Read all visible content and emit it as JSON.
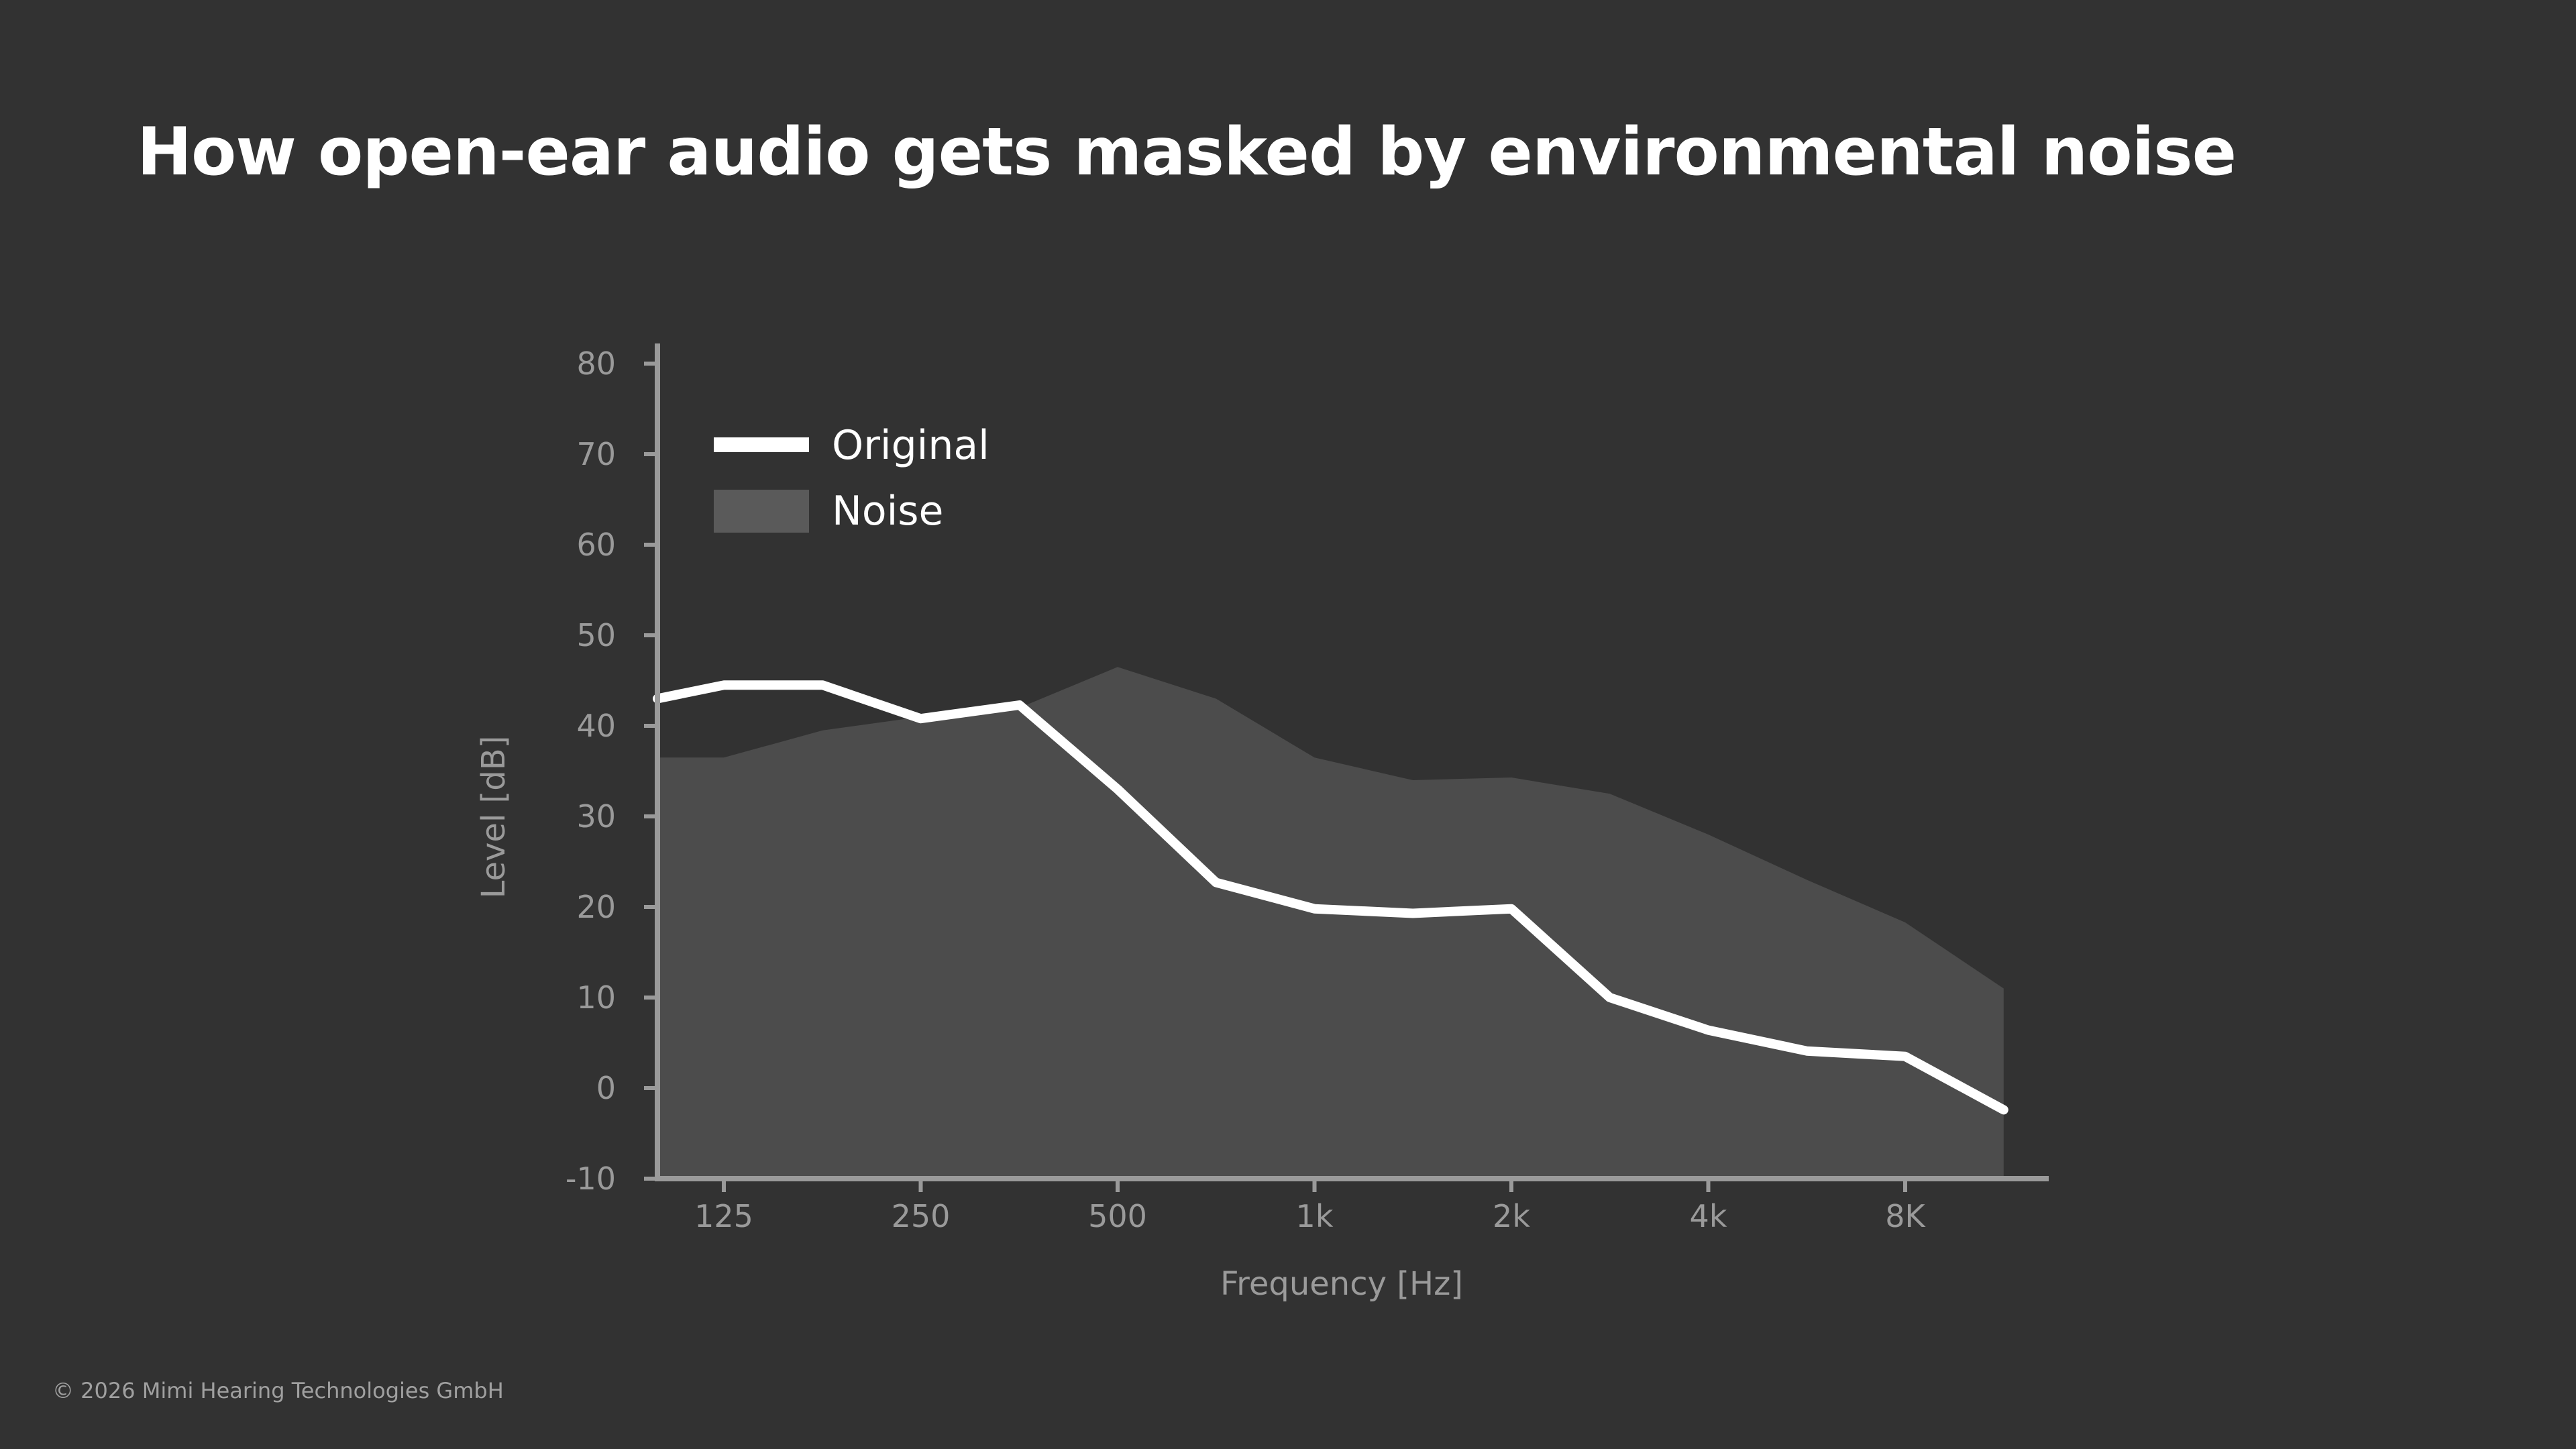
{
  "slide": {
    "title": "How open-ear audio gets masked by environmental noise",
    "footer": "© 2026 Mimi Hearing Technologies GmbH"
  },
  "colors": {
    "background": "#323232",
    "original_line": "#ffffff",
    "noise_fill": "#4c4c4c",
    "axis": "#9a9a9a"
  },
  "chart_data": {
    "type": "area",
    "title": "",
    "xlabel": "Frequency [Hz]",
    "ylabel": "Level [dB]",
    "x_scale": "log",
    "xlim": [
      100,
      12000
    ],
    "ylim": [
      -10,
      80
    ],
    "y_ticks": [
      -10,
      0,
      10,
      20,
      30,
      40,
      50,
      60,
      70,
      80
    ],
    "x_ticks": [
      {
        "value": 125,
        "label": "125"
      },
      {
        "value": 250,
        "label": "250"
      },
      {
        "value": 500,
        "label": "500"
      },
      {
        "value": 1000,
        "label": "1k"
      },
      {
        "value": 2000,
        "label": "2k"
      },
      {
        "value": 4000,
        "label": "4k"
      },
      {
        "value": 8000,
        "label": "8K"
      }
    ],
    "grid": false,
    "legend_position": "top-left",
    "series": [
      {
        "name": "Noise",
        "kind": "area",
        "points": [
          [
            100,
            36.5
          ],
          [
            125,
            36.5
          ],
          [
            177,
            39.5
          ],
          [
            250,
            41
          ],
          [
            354,
            42
          ],
          [
            500,
            46.5
          ],
          [
            707,
            43
          ],
          [
            1000,
            36.5
          ],
          [
            1414,
            34
          ],
          [
            2000,
            34.3
          ],
          [
            2828,
            32.5
          ],
          [
            4000,
            28
          ],
          [
            5657,
            23
          ],
          [
            8000,
            18.3
          ],
          [
            11314,
            11
          ]
        ]
      },
      {
        "name": "Original",
        "kind": "line",
        "points": [
          [
            100,
            43
          ],
          [
            125,
            44.5
          ],
          [
            177,
            44.5
          ],
          [
            250,
            40.8
          ],
          [
            354,
            42.3
          ],
          [
            500,
            33
          ],
          [
            707,
            22.7
          ],
          [
            1000,
            19.8
          ],
          [
            1414,
            19.3
          ],
          [
            2000,
            19.8
          ],
          [
            2828,
            10
          ],
          [
            4000,
            6.4
          ],
          [
            5657,
            4.1
          ],
          [
            8000,
            3.5
          ],
          [
            11314,
            -2.4
          ]
        ]
      }
    ]
  }
}
